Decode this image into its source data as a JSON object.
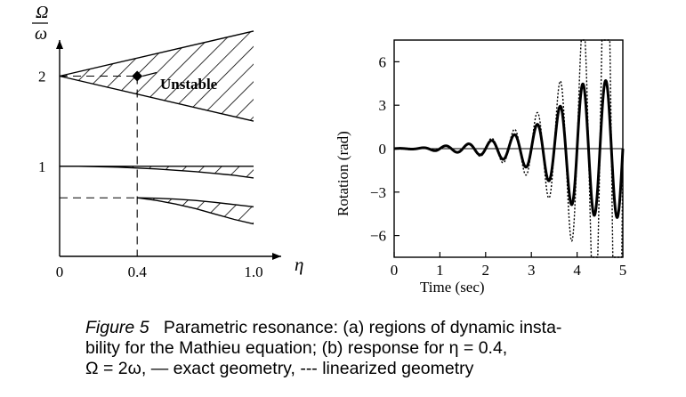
{
  "caption": {
    "label": "Figure 5",
    "line1": "Parametric resonance: (a) regions of dynamic insta-",
    "line2": "bility for the Mathieu equation; (b) response for  η = 0.4,",
    "line3": "Ω = 2ω, — exact geometry, --- linearized geometry"
  },
  "chart_data": [
    {
      "type": "area",
      "panel": "a",
      "ylabel_num": "Ω",
      "ylabel_den": "ω",
      "xlabel": "η",
      "xlim": [
        0,
        1.0
      ],
      "ylim": [
        0,
        2.4
      ],
      "x_ticks": [
        0,
        0.4,
        1.0
      ],
      "x_tick_labels": [
        "0",
        "0.4",
        "1.0"
      ],
      "y_ticks": [
        1,
        2
      ],
      "y_tick_labels": [
        "1",
        "2"
      ],
      "annotation": "Unstable",
      "marked_point": {
        "x": 0.4,
        "y": 2.0
      },
      "regions": [
        {
          "name_note": "first instability region",
          "x": [
            0,
            1.0
          ],
          "upper": [
            2.0,
            2.5
          ],
          "lower": [
            2.0,
            1.5
          ]
        },
        {
          "name_note": "second instability region",
          "x": [
            0,
            0.1,
            0.2,
            0.3,
            0.4,
            0.5,
            0.6,
            0.7,
            0.8,
            0.9,
            1.0
          ],
          "upper": [
            1.0,
            1.0,
            1.0,
            1.0,
            1.0,
            1.0,
            1.0,
            1.0,
            1.0,
            1.0,
            1.0
          ],
          "lower": [
            1.0,
            1.0,
            0.995,
            0.99,
            0.98,
            0.97,
            0.955,
            0.94,
            0.92,
            0.9,
            0.87
          ]
        }
      ],
      "third_region": {
        "x": [
          0.4,
          0.5,
          0.6,
          0.7,
          0.8,
          0.9,
          1.0
        ],
        "upper": [
          0.65,
          0.645,
          0.635,
          0.62,
          0.6,
          0.575,
          0.55
        ],
        "lower": [
          0.65,
          0.62,
          0.58,
          0.53,
          0.47,
          0.41,
          0.36
        ]
      },
      "grid": false
    },
    {
      "type": "line",
      "panel": "b",
      "xlabel": "Time (sec)",
      "ylabel": "Rotation (rad)",
      "xlim": [
        0,
        5
      ],
      "ylim": [
        -7.5,
        7.5
      ],
      "x_ticks": [
        0,
        1,
        2,
        3,
        4,
        5
      ],
      "y_ticks": [
        -6,
        -3,
        0,
        3,
        6
      ],
      "y_tick_labels": [
        "−6",
        "−3",
        "0",
        "3",
        "6"
      ],
      "series": [
        {
          "style": "solid",
          "frequency_hz": 2.0,
          "t_sat": 3.5,
          "amp_max": 4.8,
          "amp0": 0.05
        },
        {
          "style": "dotted",
          "frequency_hz": 2.0,
          "amp_max": 7.4,
          "amp0": 0.05,
          "note_runs_off_scale_after": 3.3
        }
      ],
      "grid": false
    }
  ]
}
